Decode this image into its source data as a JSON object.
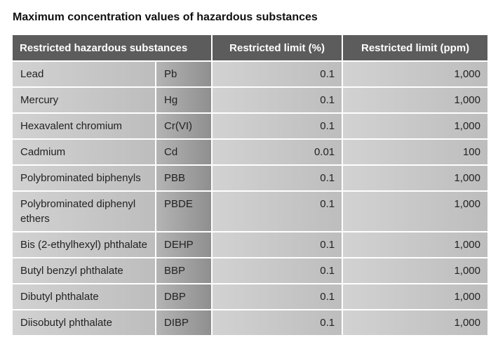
{
  "title": "Maximum concentration values of hazardous substances",
  "table": {
    "header": [
      "Restricted hazardous substances",
      "Restricted limit (%)",
      "Restricted limit (ppm)"
    ],
    "rows": [
      [
        "Lead",
        "Pb",
        "0.1",
        "1,000"
      ],
      [
        "Mercury",
        "Hg",
        "0.1",
        "1,000"
      ],
      [
        "Hexavalent chromium",
        "Cr(VI)",
        "0.1",
        "1,000"
      ],
      [
        "Cadmium",
        "Cd",
        "0.01",
        "100"
      ],
      [
        "Polybrominated biphenyls",
        "PBB",
        "0.1",
        "1,000"
      ],
      [
        "Polybrominated diphenyl ethers",
        "PBDE",
        "0.1",
        "1,000"
      ],
      [
        "Bis (2-ethylhexyl) phthalate",
        "DEHP",
        "0.1",
        "1,000"
      ],
      [
        "Butyl benzyl phthalate",
        "BBP",
        "0.1",
        "1,000"
      ],
      [
        "Dibutyl phthalate",
        "DBP",
        "0.1",
        "1,000"
      ],
      [
        "Diisobutyl phthalate",
        "DIBP",
        "0.1",
        "1,000"
      ]
    ]
  }
}
